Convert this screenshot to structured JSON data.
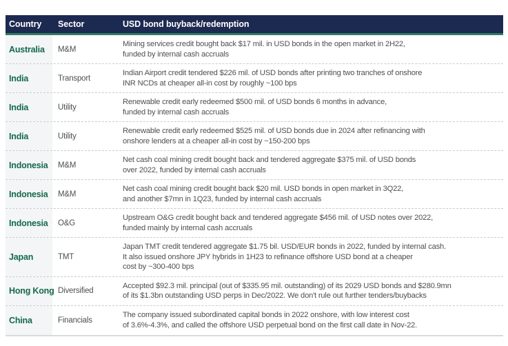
{
  "table": {
    "columns": [
      "Country",
      "Sector",
      "USD bond buyback/redemption"
    ],
    "rows": [
      {
        "country": "Australia",
        "sector": "M&M",
        "description": "Mining services credit bought back $17 mil. in USD bonds in the open market in 2H22,\nfunded by internal cash accruals"
      },
      {
        "country": "India",
        "sector": "Transport",
        "description": "Indian Airport credit tendered $226 mil. of USD bonds after printing two tranches of onshore\nINR NCDs at cheaper all-in cost by roughly ~100 bps"
      },
      {
        "country": "India",
        "sector": "Utility",
        "description": "Renewable credit early redeemed $500 mil. of USD bonds 6 months in advance,\nfunded by internal cash accruals"
      },
      {
        "country": "India",
        "sector": "Utility",
        "description": "Renewable credit early redeemed $525 mil. of USD bonds due in 2024 after refinancing with\nonshore lenders at a cheaper all-in cost by ~150-200 bps"
      },
      {
        "country": "Indonesia",
        "sector": "M&M",
        "description": "Net cash coal mining credit bought back and tendered aggregate $375 mil. of USD bonds\nover 2022, funded by internal cash accruals"
      },
      {
        "country": "Indonesia",
        "sector": "M&M",
        "description": "Net cash coal mining credit bought back $20 mil. USD bonds in open market in 3Q22,\nand another $7mn in 1Q23, funded by internal cash accruals"
      },
      {
        "country": "Indonesia",
        "sector": "O&G",
        "description": "Upstream O&G credit bought back and tendered aggregate $456 mil. of USD notes over 2022,\nfunded mainly by internal cash accruals"
      },
      {
        "country": "Japan",
        "sector": "TMT",
        "description": "Japan TMT credit tendered aggregate $1.75 bil. USD/EUR bonds in 2022, funded by internal cash.\nIt also issued onshore JPY hybrids in 1H23 to refinance offshore USD bond at a cheaper\ncost by ~300-400 bps"
      },
      {
        "country": "Hong Kong",
        "sector": "Diversified",
        "description": "Accepted $92.3 mil. principal (out of $335.95 mil. outstanding) of its 2029 USD bonds and $280.9mn\nof its $1.3bn outstanding USD perps in Dec/2022. We don't rule out further tenders/buybacks"
      },
      {
        "country": "China",
        "sector": "Financials",
        "description": "The company issued subordinated capital bonds in 2022 onshore, with low interest cost\nof 3.6%-4.3%, and called the offshore USD perpetual bond on the first call date in Nov-22."
      }
    ]
  },
  "colors": {
    "header_bg": "#1c2a51",
    "accent_green": "#2e7c62",
    "country_green": "#15694a",
    "body_text": "#4f4f4f",
    "column_bg": "#f3f5f6",
    "dash_gray": "#c9cbcb",
    "bottom_rule": "#d9dbdb",
    "header_text": "#ffffff"
  }
}
